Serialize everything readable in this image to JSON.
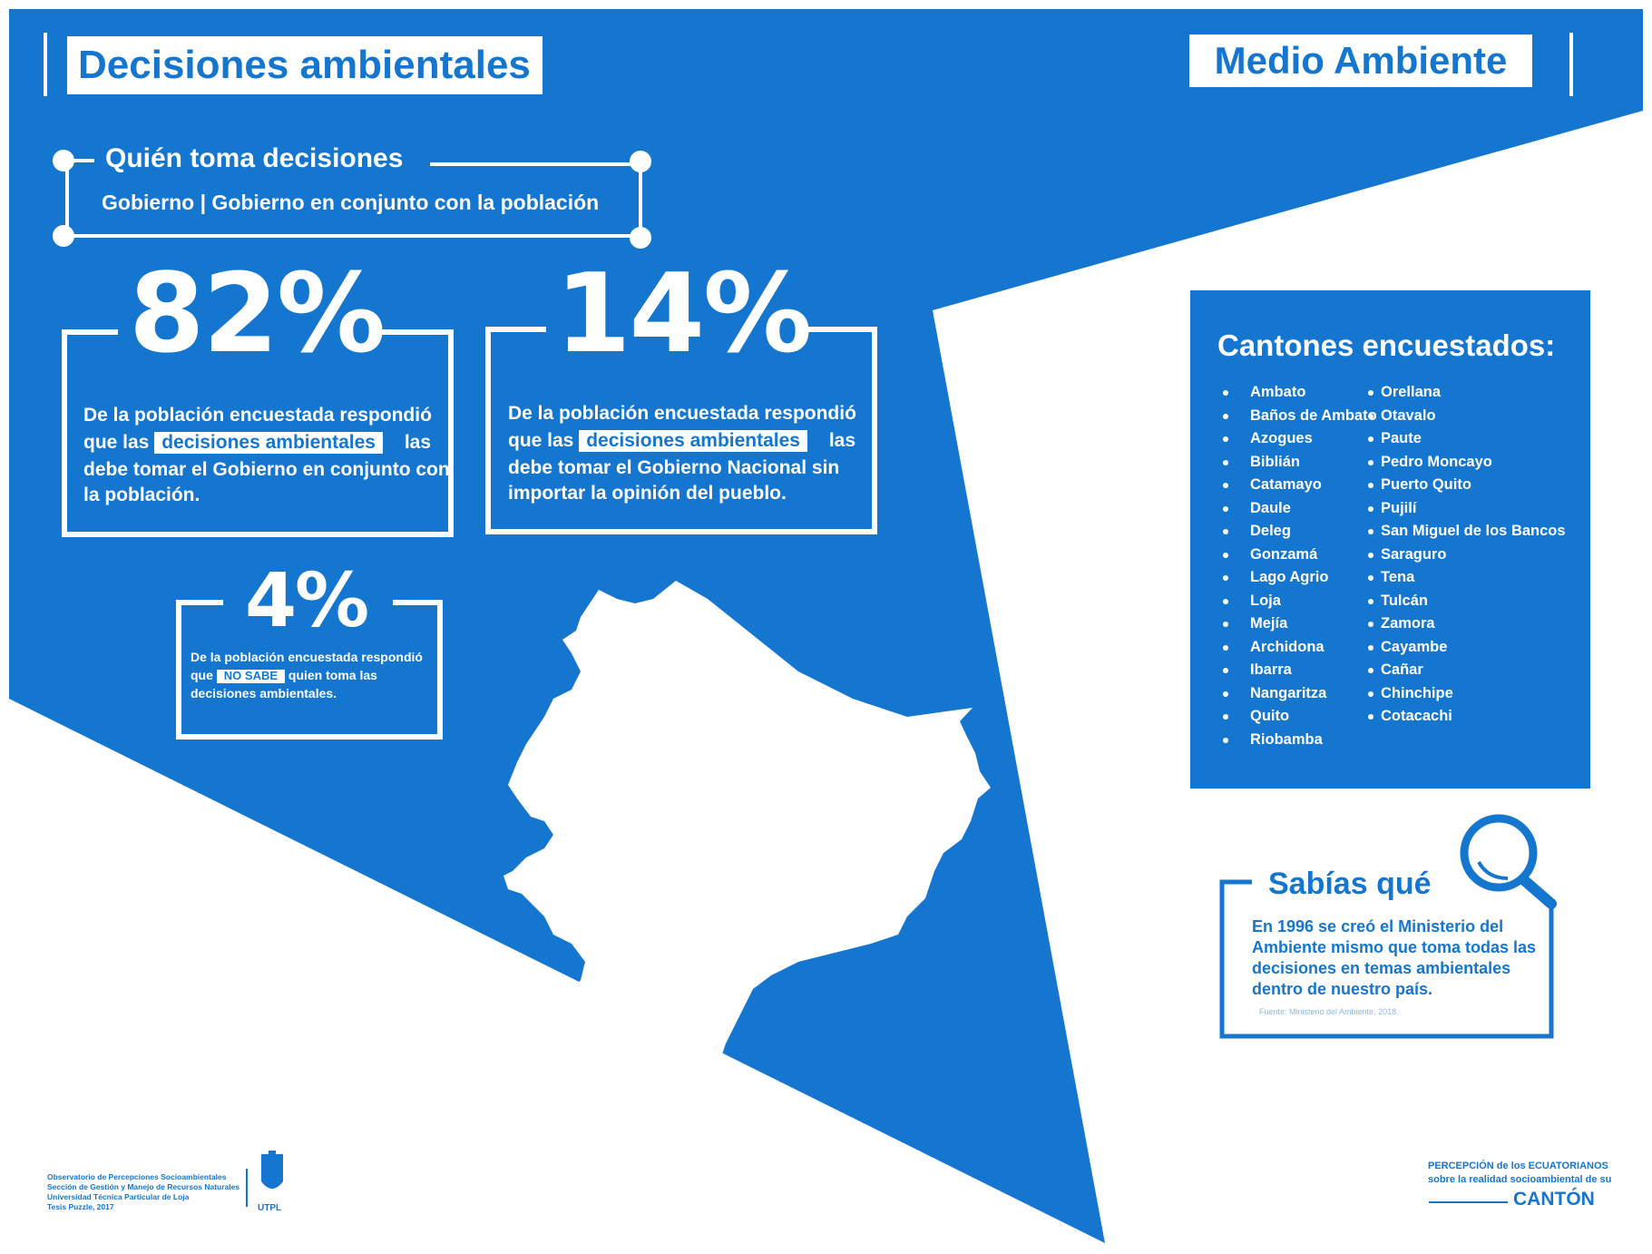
{
  "header": {
    "title": "Decisiones ambientales",
    "category": "Medio  Ambiente"
  },
  "who_decides": {
    "title": "Quién toma decisiones",
    "options": "Gobierno | Gobierno en conjunto con la población"
  },
  "stats": [
    {
      "value": "82%",
      "text_before": "De la población encuestada respondió que las",
      "highlight": "decisiones ambientales",
      "text_after_1": "las",
      "text_after_2": "debe tomar el Gobierno en conjunto con la población."
    },
    {
      "value": "14%",
      "text_before": "De la población encuestada respondió que las",
      "highlight": "decisiones ambientales",
      "text_after_1": "las",
      "text_after_2": "debe tomar el Gobierno Nacional sin importar la opinión del pueblo."
    },
    {
      "value": "4%",
      "text_before": "De la población encuestada respondió que",
      "highlight": "NO SABE",
      "text_after_1": "quien toma las",
      "text_after_2": "decisiones ambientales."
    }
  ],
  "cantones": {
    "title": "Cantones encuestados:",
    "column1": [
      "Ambato",
      "Baños de Ambato",
      "Azogues",
      "Biblián",
      "Catamayo",
      "Daule",
      "Deleg",
      "Gonzamá",
      "Lago Agrio",
      "Loja",
      "Mejía",
      "Archidona",
      "Ibarra",
      "Nangaritza",
      "Quito",
      "Riobamba"
    ],
    "column2": [
      "Orellana",
      "Otavalo",
      "Paute",
      "Pedro Moncayo",
      "Puerto Quito",
      "Pujilí",
      "San Miguel de los Bancos",
      "Saraguro",
      "Tena",
      "Tulcán",
      "Zamora",
      "Cayambe",
      "Cañar",
      "Chinchipe",
      "Cotacachi"
    ]
  },
  "sabias_que": {
    "title": "Sabías qué",
    "text": "En 1996 se creó el Ministerio del Ambiente mismo que toma todas las decisiones en temas ambientales dentro de nuestro país.",
    "source": "Fuente: Ministerio del Ambiente, 2018."
  },
  "footer": {
    "lines": [
      "Observatorio de Percepciones Socioambientales",
      "Sección de Gestión y Manejo de Recursos Naturales",
      "Universidad Técnica Particular de Loja",
      "Tesis Puzzle, 2017"
    ],
    "logo_text": "UTPL",
    "brand_line1": "PERCEPCIÓN de los ECUATORIANOS",
    "brand_line2": "sobre la realidad socioambiental de su",
    "brand_line3": "CANTÓN"
  },
  "colors": {
    "primary": "#1576cf",
    "white": "#ffffff"
  }
}
